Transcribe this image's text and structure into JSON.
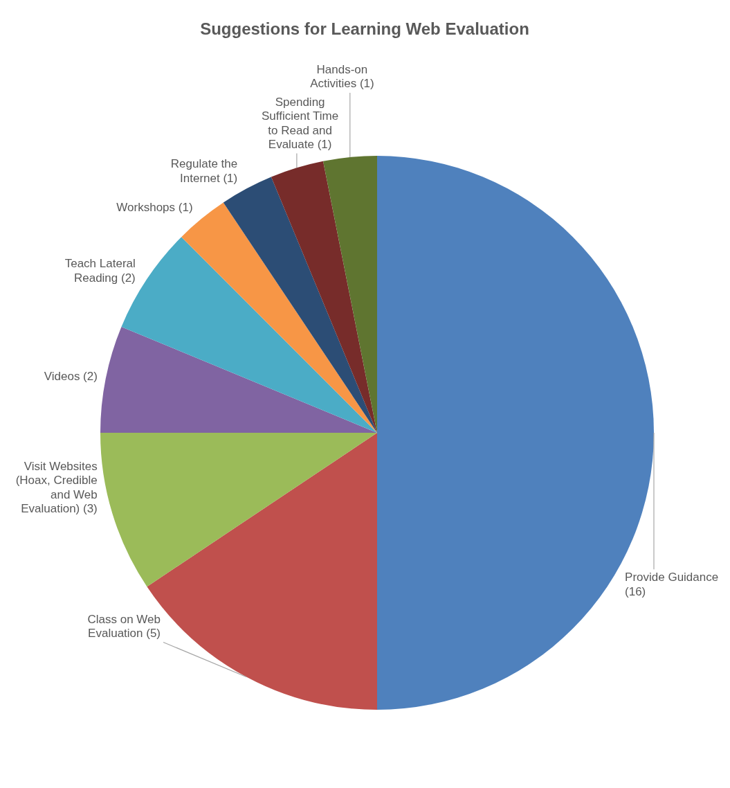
{
  "chart_data": {
    "type": "pie",
    "title": "Suggestions for Learning Web Evaluation",
    "categories": [
      "Provide Guidance (16)",
      "Class on Web Evaluation (5)",
      "Visit Websites (Hoax, Credible and Web Evaluation) (3)",
      "Videos (2)",
      "Teach Lateral Reading (2)",
      "Workshops (1)",
      "Regulate the Internet (1)",
      "Spending Sufficient Time to Read and Evaluate (1)",
      "Hands-on Activities (1)"
    ],
    "values": [
      16,
      5,
      3,
      2,
      2,
      1,
      1,
      1,
      1
    ],
    "colors": [
      "#4f81bd",
      "#c0504d",
      "#9bbb59",
      "#8064a2",
      "#4bacc6",
      "#f79646",
      "#2c4d75",
      "#772c2a",
      "#5f7530"
    ]
  }
}
